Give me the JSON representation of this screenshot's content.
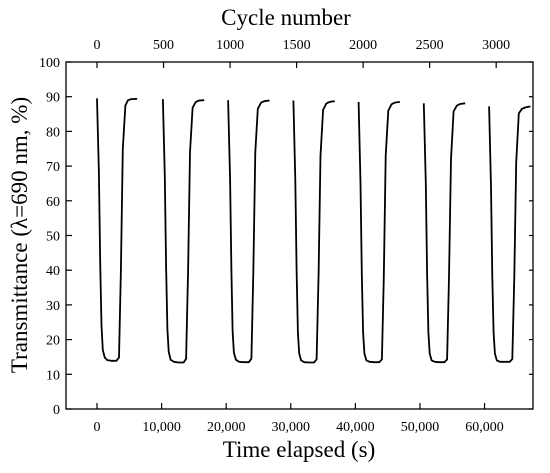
{
  "chart_data": {
    "type": "line",
    "title": "",
    "xlabel": "Time elapsed (s)",
    "ylabel": "Transmittance (λ=690 nm, %)",
    "x2label": "Cycle number",
    "xlim": [
      -4800,
      67500
    ],
    "ylim": [
      0,
      100
    ],
    "x_ticks": [
      0,
      10000,
      20000,
      30000,
      40000,
      50000,
      60000
    ],
    "x_tick_labels": [
      "0",
      "10,000",
      "20,000",
      "30,000",
      "40,000",
      "50,000",
      "60,000"
    ],
    "y_ticks": [
      0,
      10,
      20,
      30,
      40,
      50,
      60,
      70,
      80,
      90,
      100
    ],
    "y_tick_labels": [
      "0",
      "10",
      "20",
      "30",
      "40",
      "50",
      "60",
      "70",
      "80",
      "90",
      "100"
    ],
    "x2_ticks": [
      0,
      500,
      1000,
      1500,
      2000,
      2500,
      3000
    ],
    "x2_tick_labels": [
      "0",
      "500",
      "1000",
      "1500",
      "2000",
      "2500",
      "3000"
    ],
    "x2_tick_positions": [
      0,
      10300,
      20600,
      30900,
      41200,
      51500,
      61800
    ],
    "grid": false,
    "legend": "none",
    "series": [
      {
        "color": "#000000",
        "x": [
          0,
          300,
          500,
          700,
          900,
          1200,
          1600,
          2200,
          3000,
          3400,
          3700,
          4000,
          4400,
          4800,
          5300,
          6200,
          10200,
          10500,
          10700,
          10900,
          11100,
          11400,
          11900,
          12600,
          13400,
          13800,
          14100,
          14400,
          14800,
          15300,
          15800,
          16600,
          20300,
          20600,
          20800,
          21000,
          21200,
          21500,
          22000,
          22700,
          23500,
          23900,
          24200,
          24500,
          24900,
          25400,
          25900,
          26700,
          30400,
          30700,
          30900,
          31100,
          31300,
          31600,
          32100,
          32800,
          33600,
          34000,
          34300,
          34600,
          35000,
          35500,
          36000,
          36800,
          40500,
          40800,
          41000,
          41200,
          41400,
          41700,
          42200,
          42900,
          43700,
          44100,
          44400,
          44700,
          45100,
          45600,
          46100,
          46900,
          50600,
          50900,
          51100,
          51300,
          51500,
          51800,
          52300,
          53000,
          53800,
          54200,
          54500,
          54800,
          55200,
          55700,
          56200,
          57000,
          60700,
          61000,
          61200,
          61400,
          61600,
          61900,
          62400,
          63100,
          63900,
          64300,
          64600,
          64900,
          65300,
          65800,
          66300,
          67100
        ],
        "y": [
          89.5,
          68,
          42,
          24,
          17,
          14.8,
          14.1,
          13.9,
          13.9,
          14.8,
          40,
          75,
          87.5,
          89.0,
          89.3,
          89.4,
          89.3,
          67,
          41,
          23,
          16.5,
          14.2,
          13.6,
          13.4,
          13.4,
          14.5,
          40,
          74,
          86.8,
          88.5,
          88.9,
          89.0,
          89.0,
          66,
          40,
          22.5,
          16.2,
          14.2,
          13.6,
          13.5,
          13.5,
          14.5,
          39,
          74,
          86.5,
          88.3,
          88.7,
          88.9,
          88.9,
          66,
          40,
          22,
          16,
          14.0,
          13.5,
          13.4,
          13.4,
          14.3,
          39,
          73,
          86.2,
          88.0,
          88.5,
          88.7,
          88.5,
          65,
          39,
          22,
          16,
          14.0,
          13.6,
          13.5,
          13.5,
          14.3,
          38,
          73,
          86.0,
          87.8,
          88.3,
          88.5,
          88.1,
          65,
          39,
          22,
          16,
          14.0,
          13.6,
          13.5,
          13.5,
          14.3,
          38,
          72,
          85.8,
          87.4,
          87.9,
          88.1,
          87.2,
          64,
          38,
          22,
          16,
          14.0,
          13.6,
          13.6,
          13.6,
          14.4,
          38,
          71,
          85.2,
          86.5,
          86.9,
          87.2
        ]
      }
    ]
  }
}
